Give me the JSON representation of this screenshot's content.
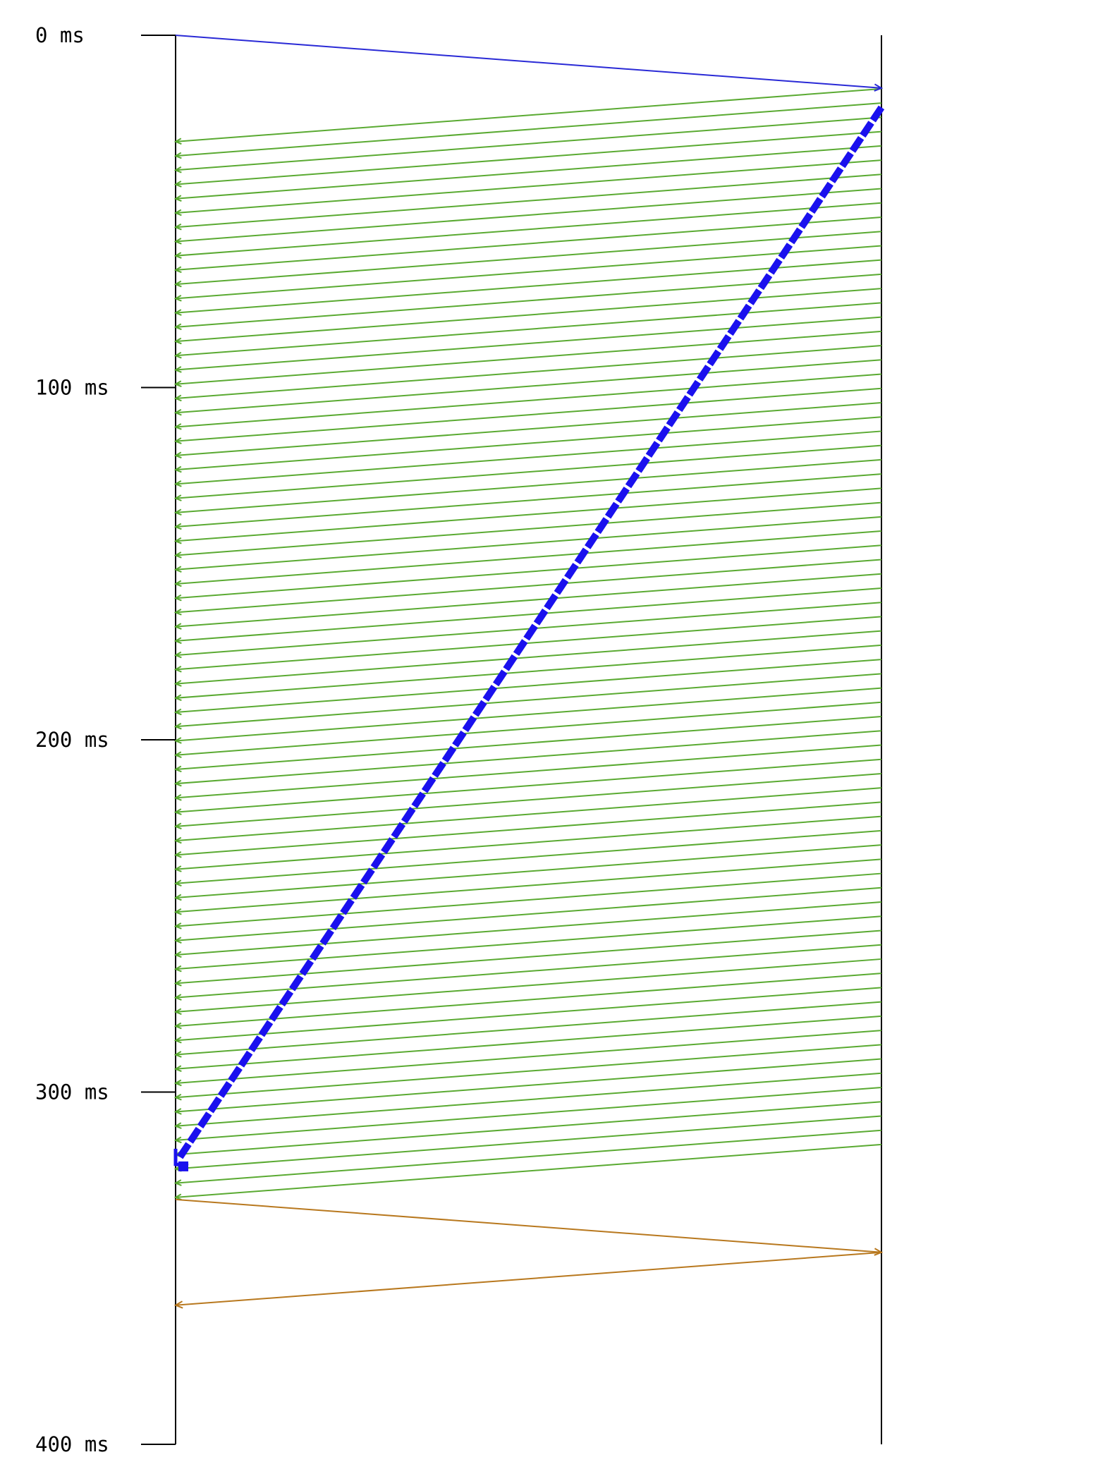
{
  "time_axis": {
    "unit": "ms",
    "min": 0,
    "max": 400,
    "ticks": [
      {
        "value": 0,
        "label": "0 ms"
      },
      {
        "value": 100,
        "label": "100 ms"
      },
      {
        "value": 200,
        "label": "200 ms"
      },
      {
        "value": 300,
        "label": "300 ms"
      },
      {
        "value": 400,
        "label": "400 ms"
      }
    ]
  },
  "colors": {
    "lifeline": "#000000",
    "request": "#2a2ad6",
    "response_burst": "#5aaa32",
    "ack_stream": "#1a10ee",
    "handshake": "#b8781e"
  },
  "messages": {
    "request": {
      "from": "left",
      "to": "right",
      "send_ms": 0,
      "recv_ms": 15
    },
    "response_burst": {
      "from": "right",
      "to": "left",
      "count": 75,
      "first_send_ms": 15.2,
      "last_send_ms": 315.2,
      "interval_ms": 4.05,
      "one_way_ms": 15
    },
    "ack_stream": {
      "from": "right",
      "to": "left",
      "send_ms": 20.5,
      "recv_ms": 320.5
    },
    "handshake_out": {
      "from": "left",
      "to": "right",
      "send_ms": 330.5,
      "recv_ms": 345.5
    },
    "handshake_back": {
      "from": "right",
      "to": "left",
      "send_ms": 345.5,
      "recv_ms": 360.5
    }
  }
}
